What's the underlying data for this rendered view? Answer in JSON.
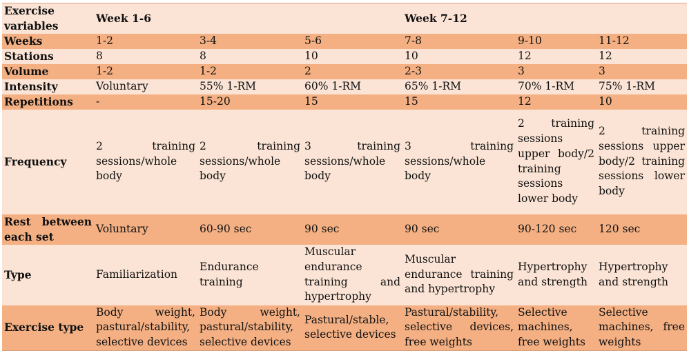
{
  "header": {
    "label": "Exercise variables",
    "phase1": "Week 1-6",
    "phase2": "Week 7-12"
  },
  "rows": {
    "weeks": {
      "label": "Weeks",
      "values": [
        "1-2",
        "3-4",
        "5-6",
        "7-8",
        "9-10",
        "11-12"
      ]
    },
    "stations": {
      "label": "Stations",
      "values": [
        "8",
        "8",
        "10",
        "10",
        "12",
        "12"
      ]
    },
    "volume": {
      "label": "Volume",
      "values": [
        "1-2",
        "1-2",
        "2",
        "2-3",
        "3",
        "3"
      ]
    },
    "intensity": {
      "label": "Intensity",
      "values": [
        "Voluntary",
        "55% 1-RM",
        "60% 1-RM",
        "65% 1-RM",
        "70% 1-RM",
        "75% 1-RM"
      ]
    },
    "repetitions": {
      "label": "Repetitions",
      "values": [
        "-",
        "15-20",
        "15",
        "15",
        "12",
        "10"
      ]
    },
    "frequency": {
      "label": "Frequency",
      "values": [
        "2 training sessions/whole body",
        "2 training sessions/whole body",
        "3 training sessions/whole body",
        "3 training sessions/whole body",
        "2 training sessions upper body/2 training sessions lower body",
        "2 training sessions upper body/2 training sessions lower body"
      ]
    },
    "rest": {
      "label": "Rest between each set",
      "values": [
        "Voluntary",
        "60-90 sec",
        "90 sec",
        "90 sec",
        "90-120 sec",
        "120 sec"
      ]
    },
    "type": {
      "label": "Type",
      "values": [
        "Familiarization",
        "Endurance training",
        "Muscular endurance training and hypertrophy",
        "Muscular endurance training and hypertrophy",
        "Hypertrophy and strength",
        "Hypertrophy and strength"
      ]
    },
    "exercise_type": {
      "label": "Exercise type",
      "values": [
        "Body weight, pastural/stability, selective devices",
        "Body weight, pastural/stability, selective devices",
        "Pastural/stable, selective devices",
        "Pastural/stability, selective devices, free weights",
        "Selective machines, free weights",
        "Selective machines, free weights"
      ]
    }
  },
  "colors": {
    "light_row": "#fbe4d5",
    "dark_row": "#f4b083"
  }
}
